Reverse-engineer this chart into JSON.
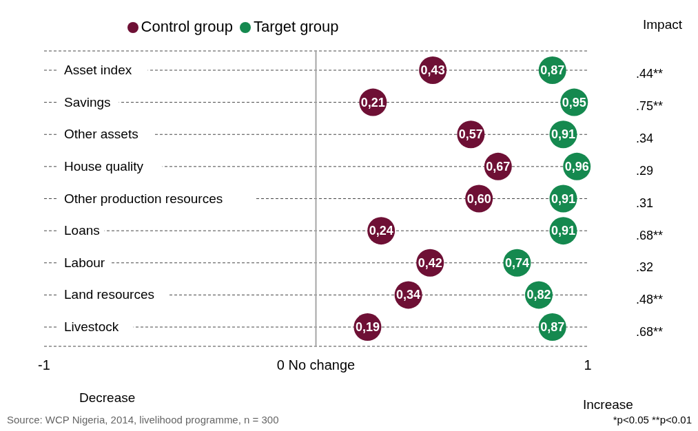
{
  "chart_data": {
    "type": "scatter",
    "orientation": "horizontal",
    "categories": [
      "Asset index",
      "Savings",
      "Other assets",
      "House quality",
      "Other production resources",
      "Loans",
      "Labour",
      "Land resources",
      "Livestock"
    ],
    "series": [
      {
        "name": "Control group",
        "color": "#6e1035",
        "values": [
          0.43,
          0.21,
          0.57,
          0.67,
          0.6,
          0.24,
          0.42,
          0.34,
          0.19
        ],
        "value_labels": [
          "0,43",
          "0,21",
          "0,57",
          "0,67",
          "0,60",
          "0,24",
          "0,42",
          "0,34",
          "0,19"
        ]
      },
      {
        "name": "Target group",
        "color": "#15894f",
        "values": [
          0.87,
          0.95,
          0.91,
          0.96,
          0.91,
          0.91,
          0.74,
          0.82,
          0.87
        ],
        "value_labels": [
          "0,87",
          "0,95",
          "0,91",
          "0,96",
          "0,91",
          "0,91",
          "0,74",
          "0,82",
          "0,87"
        ]
      }
    ],
    "xlim": [
      -1,
      1
    ],
    "xticks": [
      -1,
      {
        "value": 0,
        "label": "0 No change"
      },
      1
    ],
    "ref_lines": [
      {
        "axis": "x",
        "value": 0,
        "color": "#a6a6a6"
      }
    ],
    "grid": "y",
    "line_style": "dashed",
    "legend": "top",
    "marker": "circle",
    "annotations": [
      "Impact",
      "Decrease",
      "Increase",
      "Source: WCP Nigeria,  2014, livelihood programme, n = 300",
      "*p<0.05 **p<0.01",
      ".44**",
      ".75**",
      ".34",
      ".29",
      ".31",
      ".68**",
      ".32",
      ".48**",
      ".68**"
    ]
  }
}
